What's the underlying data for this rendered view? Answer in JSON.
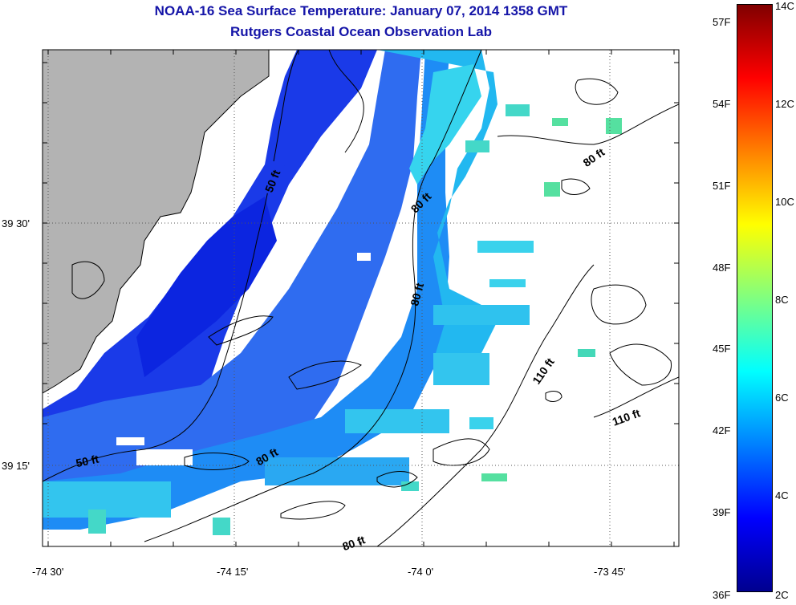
{
  "title": "NOAA-16 Sea Surface Temperature:  January 07, 2014 1358 GMT",
  "subtitle": "Rutgers Coastal Ocean Observation Lab",
  "axes": {
    "x_ticks": [
      "-74 30'",
      "-74 15'",
      "-74 0'",
      "-73 45'"
    ],
    "y_ticks": [
      "39 30'",
      "39 15'"
    ],
    "grid": "dotted"
  },
  "contour_labels": [
    "50 ft",
    "80 ft",
    "80 ft",
    "80 ft",
    "110 ft",
    "110 ft",
    "50 ft",
    "80 ft",
    "80 ft"
  ],
  "colorbar": {
    "fahrenheit_labels": [
      "57F",
      "54F",
      "51F",
      "48F",
      "45F",
      "42F",
      "39F",
      "36F"
    ],
    "celsius_labels": [
      "14C",
      "12C",
      "10C",
      "8C",
      "6C",
      "4C",
      "2C"
    ],
    "colors": [
      "#800000",
      "#ff0000",
      "#ff8000",
      "#ffff00",
      "#80ff80",
      "#00ffff",
      "#0080ff",
      "#0000ff",
      "#00008f"
    ]
  },
  "colors": {
    "land": "#b3b3b3",
    "title": "#1515a8"
  }
}
